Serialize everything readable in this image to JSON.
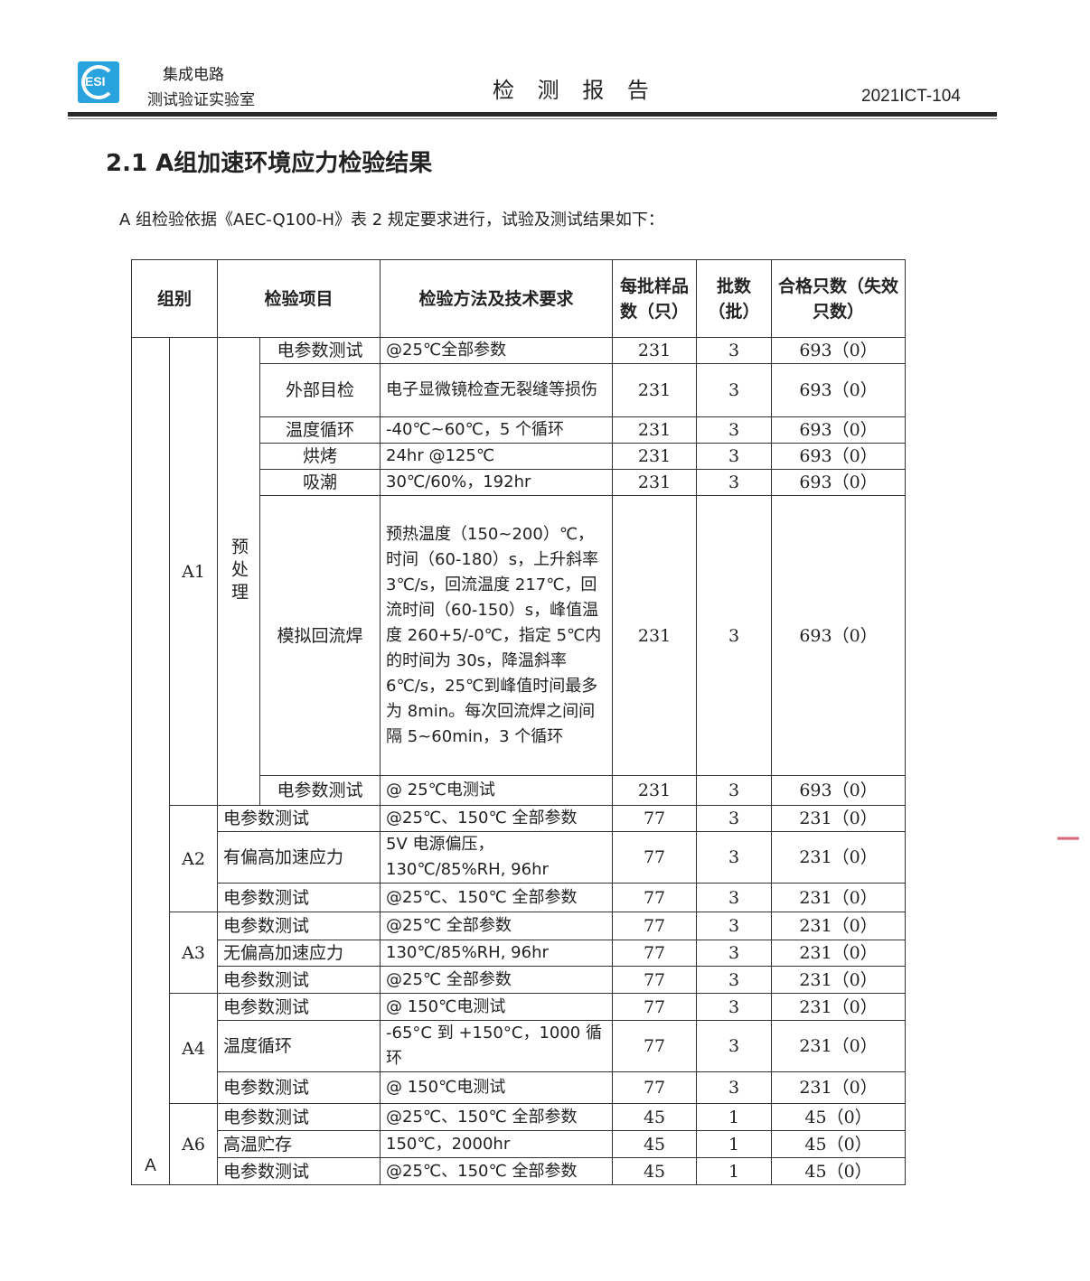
{
  "header": {
    "logo_text": "ESI",
    "org_line1": "集成电路",
    "org_line2": "测试验证实验室",
    "report_title": "检 测 报 告",
    "report_no": "2021ICT-104"
  },
  "section": {
    "title": "2.1  A组加速环境应力检验结果",
    "intro": "A 组检验依据《AEC-Q100-H》表 2 规定要求进行，试验及测试结果如下："
  },
  "table": {
    "headers": [
      "组别",
      "检验项目",
      "检验方法及技术要求",
      "每批样品数（只）",
      "批数（批）",
      "合格只数（失效只数）"
    ],
    "group": "A",
    "a1": {
      "label": "A1",
      "pre": "预处理",
      "rows": [
        {
          "item": "电参数测试",
          "method": "@25℃全部参数",
          "n": "231",
          "lots": "3",
          "pass": "693（0）"
        },
        {
          "item": "外部目检",
          "method": "电子显微镜检查无裂缝等损伤",
          "n": "231",
          "lots": "3",
          "pass": "693（0）"
        },
        {
          "item": "温度循环",
          "method": "-40℃~60℃，5 个循环",
          "n": "231",
          "lots": "3",
          "pass": "693（0）"
        },
        {
          "item": "烘烤",
          "method": "24hr @125℃",
          "n": "231",
          "lots": "3",
          "pass": "693（0）"
        },
        {
          "item": "吸潮",
          "method": "30℃/60%，192hr",
          "n": "231",
          "lots": "3",
          "pass": "693（0）"
        },
        {
          "item": "模拟回流焊",
          "method": "预热温度（150~200）℃，时间（60-180）s，上升斜率 3℃/s，回流温度 217℃，回流时间（60-150）s，峰值温度 260+5/-0℃，指定 5℃内的时间为 30s，降温斜率 6℃/s，25℃到峰值时间最多为 8min。每次回流焊之间间隔 5~60min，3 个循环",
          "n": "231",
          "lots": "3",
          "pass": "693（0）"
        },
        {
          "item": "电参数测试",
          "method": "@ 25℃电测试",
          "n": "231",
          "lots": "3",
          "pass": "693（0）"
        }
      ]
    },
    "subgroups": [
      {
        "label": "A2",
        "rows": [
          {
            "item": "电参数测试",
            "method": "@25℃、150℃ 全部参数",
            "n": "77",
            "lots": "3",
            "pass": "231（0）"
          },
          {
            "item": "有偏高加速应力",
            "method": "5V 电源偏压，130℃/85%RH, 96hr",
            "n": "77",
            "lots": "3",
            "pass": "231（0）"
          },
          {
            "item": "电参数测试",
            "method": "@25℃、150℃ 全部参数",
            "n": "77",
            "lots": "3",
            "pass": "231（0）"
          }
        ]
      },
      {
        "label": "A3",
        "rows": [
          {
            "item": "电参数测试",
            "method": "@25℃ 全部参数",
            "n": "77",
            "lots": "3",
            "pass": "231（0）"
          },
          {
            "item": "无偏高加速应力",
            "method": "130℃/85%RH, 96hr",
            "n": "77",
            "lots": "3",
            "pass": "231（0）"
          },
          {
            "item": "电参数测试",
            "method": "@25℃ 全部参数",
            "n": "77",
            "lots": "3",
            "pass": "231（0）"
          }
        ]
      },
      {
        "label": "A4",
        "rows": [
          {
            "item": "电参数测试",
            "method": "@ 150℃电测试",
            "n": "77",
            "lots": "3",
            "pass": "231（0）"
          },
          {
            "item": "温度循环",
            "method": "-65°C 到 +150°C，1000 循环",
            "n": "77",
            "lots": "3",
            "pass": "231（0）"
          },
          {
            "item": "电参数测试",
            "method": "@ 150℃电测试",
            "n": "77",
            "lots": "3",
            "pass": "231（0）"
          }
        ]
      },
      {
        "label": "A6",
        "rows": [
          {
            "item": "电参数测试",
            "method": "@25℃、150℃ 全部参数",
            "n": "45",
            "lots": "1",
            "pass": "45（0）"
          },
          {
            "item": "高温贮存",
            "method": "150℃，2000hr",
            "n": "45",
            "lots": "1",
            "pass": "45（0）"
          },
          {
            "item": "电参数测试",
            "method": "@25℃、150℃ 全部参数",
            "n": "45",
            "lots": "1",
            "pass": "45（0）"
          }
        ]
      }
    ]
  },
  "colors": {
    "logo": "#29a3dd",
    "stamp": "#d9697a"
  }
}
